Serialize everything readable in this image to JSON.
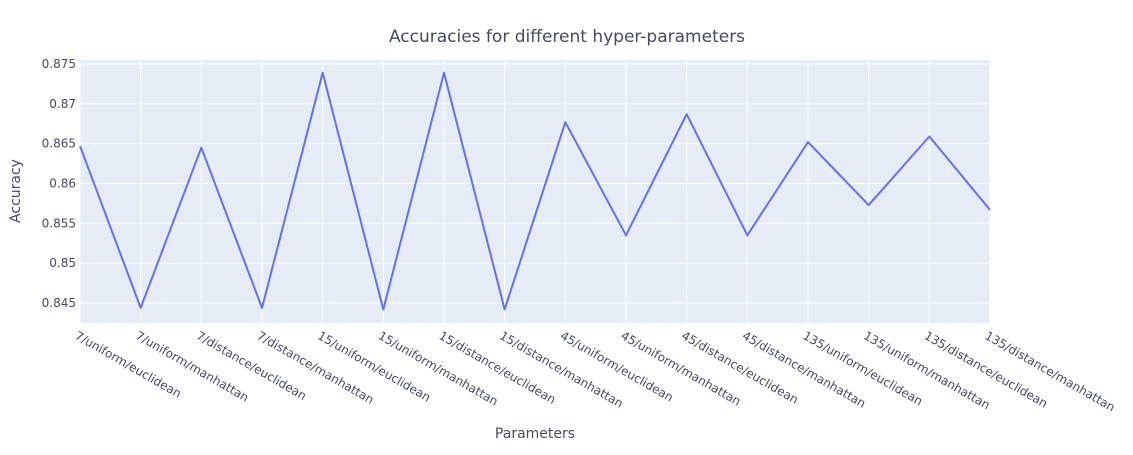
{
  "chart_data": {
    "type": "line",
    "title": "Accuracies for different hyper-parameters",
    "xlabel": "Parameters",
    "ylabel": "Accuracy",
    "grid": true,
    "ylim": [
      0.8425,
      0.8755
    ],
    "yticks": [
      "0.845",
      "0.85",
      "0.855",
      "0.86",
      "0.865",
      "0.87",
      "0.875"
    ],
    "categories": [
      "7/uniform/euclidean",
      "7/uniform/manhattan",
      "7/distance/euclidean",
      "7/distance/manhattan",
      "15/uniform/euclidean",
      "15/uniform/manhattan",
      "15/distance/euclidean",
      "15/distance/manhattan",
      "45/uniform/euclidean",
      "45/uniform/manhattan",
      "45/distance/euclidean",
      "45/distance/manhattan",
      "135/uniform/euclidean",
      "135/uniform/manhattan",
      "135/distance/euclidean",
      "135/distance/manhattan"
    ],
    "series": [
      {
        "color": "#636efa",
        "values": [
          0.8647,
          0.8444,
          0.8645,
          0.8444,
          0.8739,
          0.8442,
          0.8739,
          0.8442,
          0.8677,
          0.8535,
          0.8687,
          0.8535,
          0.8652,
          0.8573,
          0.8659,
          0.8567
        ]
      }
    ]
  }
}
